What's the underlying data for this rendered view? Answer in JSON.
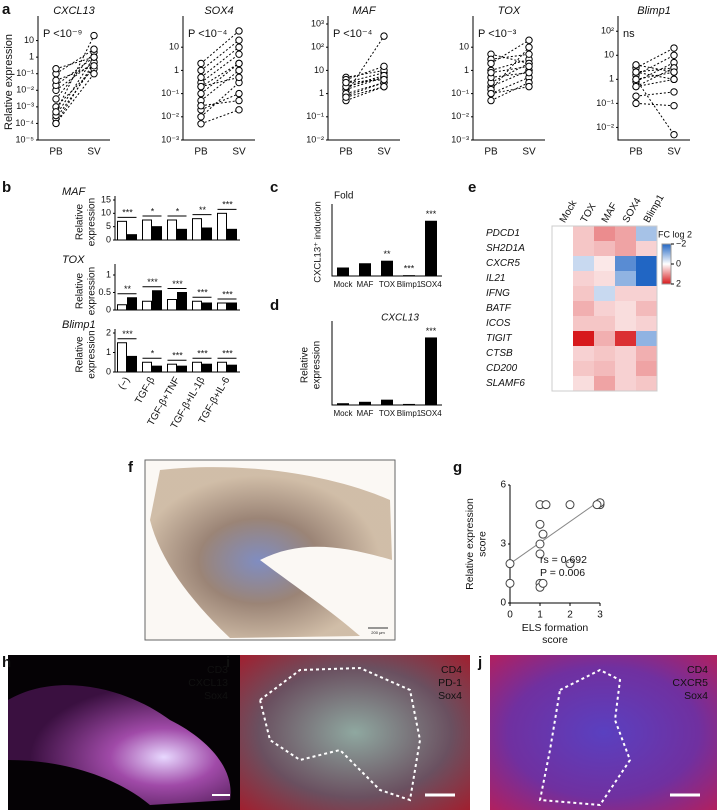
{
  "panel_labels": [
    "a",
    "b",
    "c",
    "d",
    "e",
    "f",
    "g",
    "h",
    "i",
    "j"
  ],
  "chart_data": [
    {
      "type": "paired",
      "title": "CXCL13",
      "annotation": "P <10⁻⁹",
      "ylabel": "Relative expression",
      "categories": [
        "PB",
        "SV"
      ],
      "log": true,
      "ylim": [
        1e-05,
        100
      ],
      "yticks": [
        {
          "value": 1e-05,
          "label": "10⁻⁵"
        },
        {
          "value": 0.0001,
          "label": "10⁻⁴"
        },
        {
          "value": 0.001,
          "label": "10⁻³"
        },
        {
          "value": 0.01,
          "label": "10⁻²"
        },
        {
          "value": 0.1,
          "label": "10⁻¹"
        },
        1,
        10
      ],
      "series": [
        {
          "values": [
            0.0001,
            0.5
          ]
        },
        {
          "values": [
            0.0002,
            0.3
          ]
        },
        {
          "values": [
            0.0003,
            1
          ]
        },
        {
          "values": [
            0.001,
            0.2
          ]
        },
        {
          "values": [
            0.003,
            2
          ]
        },
        {
          "values": [
            0.01,
            0.5
          ]
        },
        {
          "values": [
            0.02,
            1
          ]
        },
        {
          "values": [
            0.04,
            0.3
          ]
        },
        {
          "values": [
            0.1,
            3
          ]
        },
        {
          "values": [
            0.2,
            1
          ]
        },
        {
          "values": [
            0.0001,
            0.1
          ]
        },
        {
          "values": [
            0.0005,
            20
          ]
        }
      ]
    },
    {
      "type": "paired",
      "title": "SOX4",
      "annotation": "P <10⁻⁴",
      "categories": [
        "PB",
        "SV"
      ],
      "log": true,
      "ylim": [
        0.001,
        100
      ],
      "yticks": [
        {
          "value": 0.001,
          "label": "10⁻³"
        },
        {
          "value": 0.01,
          "label": "10⁻²"
        },
        {
          "value": 0.1,
          "label": "10⁻¹"
        },
        1,
        10
      ],
      "series": [
        {
          "values": [
            0.01,
            0.3
          ]
        },
        {
          "values": [
            0.02,
            0.1
          ]
        },
        {
          "values": [
            0.05,
            1
          ]
        },
        {
          "values": [
            0.1,
            2
          ]
        },
        {
          "values": [
            0.2,
            0.5
          ]
        },
        {
          "values": [
            0.3,
            5
          ]
        },
        {
          "values": [
            0.5,
            10
          ]
        },
        {
          "values": [
            1,
            20
          ]
        },
        {
          "values": [
            2,
            50
          ]
        },
        {
          "values": [
            0.03,
            0.05
          ]
        },
        {
          "values": [
            0.005,
            0.02
          ]
        },
        {
          "values": [
            0.2,
            2
          ]
        }
      ]
    },
    {
      "type": "paired",
      "title": "MAF",
      "annotation": "P <10⁻⁴",
      "categories": [
        "PB",
        "SV"
      ],
      "log": true,
      "ylim": [
        0.01,
        1000
      ],
      "yticks": [
        {
          "value": 0.01,
          "label": "10⁻²"
        },
        {
          "value": 0.1,
          "label": "10⁻¹"
        },
        1,
        10,
        {
          "value": 100,
          "label": "10²"
        },
        {
          "value": 1000,
          "label": "10³"
        }
      ],
      "series": [
        {
          "values": [
            0.5,
            2
          ]
        },
        {
          "values": [
            1,
            3
          ]
        },
        {
          "values": [
            2,
            5
          ]
        },
        {
          "values": [
            3,
            8
          ]
        },
        {
          "values": [
            5,
            10
          ]
        },
        {
          "values": [
            1.5,
            5
          ]
        },
        {
          "values": [
            0.8,
            3
          ]
        },
        {
          "values": [
            2,
            6
          ]
        },
        {
          "values": [
            4,
            15
          ]
        },
        {
          "values": [
            1,
            300
          ]
        },
        {
          "values": [
            3,
            4
          ]
        },
        {
          "values": [
            0.7,
            2
          ]
        }
      ]
    },
    {
      "type": "paired",
      "title": "TOX",
      "annotation": "P <10⁻³",
      "categories": [
        "PB",
        "SV"
      ],
      "log": true,
      "ylim": [
        0.001,
        100
      ],
      "yticks": [
        {
          "value": 0.001,
          "label": "10⁻³"
        },
        {
          "value": 0.01,
          "label": "10⁻²"
        },
        {
          "value": 0.1,
          "label": "10⁻¹"
        },
        1,
        10
      ],
      "series": [
        {
          "values": [
            0.1,
            0.5
          ]
        },
        {
          "values": [
            0.2,
            1
          ]
        },
        {
          "values": [
            0.3,
            2
          ]
        },
        {
          "values": [
            0.5,
            0.8
          ]
        },
        {
          "values": [
            1,
            3
          ]
        },
        {
          "values": [
            5,
            2
          ]
        },
        {
          "values": [
            3,
            5
          ]
        },
        {
          "values": [
            0.15,
            10
          ]
        },
        {
          "values": [
            0.8,
            1.5
          ]
        },
        {
          "values": [
            0.05,
            0.3
          ]
        },
        {
          "values": [
            2,
            20
          ]
        },
        {
          "values": [
            0.1,
            0.2
          ]
        }
      ]
    },
    {
      "type": "paired",
      "title": "Blimp1",
      "annotation": "ns",
      "categories": [
        "PB",
        "SV"
      ],
      "log": true,
      "ylim": [
        0.003,
        200
      ],
      "yticks": [
        {
          "value": 0.01,
          "label": "10⁻²"
        },
        {
          "value": 0.1,
          "label": "10⁻¹"
        },
        1,
        10,
        {
          "value": 100,
          "label": "10²"
        }
      ],
      "series": [
        {
          "values": [
            0.5,
            1
          ]
        },
        {
          "values": [
            1,
            2
          ]
        },
        {
          "values": [
            2,
            3
          ]
        },
        {
          "values": [
            0.8,
            5
          ]
        },
        {
          "values": [
            1.5,
            10
          ]
        },
        {
          "values": [
            3,
            20
          ]
        },
        {
          "values": [
            0.2,
            0.3
          ]
        },
        {
          "values": [
            0.1,
            0.08
          ]
        },
        {
          "values": [
            1,
            0.005
          ]
        },
        {
          "values": [
            2,
            1
          ]
        },
        {
          "values": [
            0.5,
            3
          ]
        },
        {
          "values": [
            4,
            2
          ]
        }
      ]
    },
    {
      "type": "grouped",
      "title": "MAF",
      "ylabel_lines": [
        "Relative",
        "expression"
      ],
      "ylim": [
        0,
        15
      ],
      "yticks": [
        0,
        5,
        10,
        15
      ],
      "series": [
        {
          "color": "#ffffff",
          "values": [
            7,
            7.5,
            7.5,
            8,
            10
          ]
        },
        {
          "color": "#000000",
          "values": [
            2,
            5,
            4,
            4.5,
            4
          ]
        }
      ],
      "stars": [
        "***",
        "*",
        "*",
        "**",
        "***"
      ]
    },
    {
      "type": "grouped",
      "title": "TOX",
      "ylabel_lines": [
        "Relative",
        "expression"
      ],
      "ylim": [
        0,
        1.2
      ],
      "yticks": [
        0,
        0.5,
        1
      ],
      "series": [
        {
          "color": "#ffffff",
          "values": [
            0.15,
            0.25,
            0.3,
            0.25,
            0.2
          ]
        },
        {
          "color": "#000000",
          "values": [
            0.35,
            0.55,
            0.5,
            0.2,
            0.2
          ]
        }
      ],
      "stars": [
        "**",
        "***",
        "***",
        "***",
        "***"
      ]
    },
    {
      "type": "grouped",
      "title": "Blimp1",
      "ylabel_lines": [
        "Relative",
        "expression"
      ],
      "ylim": [
        0,
        2
      ],
      "yticks": [
        0,
        1,
        2
      ],
      "categories": [
        "(−)",
        "TGF-β",
        "TGF-β+TNF",
        "TGF-β+IL-1β",
        "TGF-β+IL-6"
      ],
      "series": [
        {
          "color": "#ffffff",
          "values": [
            1.5,
            0.5,
            0.4,
            0.5,
            0.5
          ]
        },
        {
          "color": "#000000",
          "values": [
            0.8,
            0.3,
            0.3,
            0.4,
            0.35
          ]
        }
      ],
      "stars": [
        "***",
        "*",
        "***",
        "***",
        "***"
      ]
    },
    {
      "type": "bar",
      "subtitle": "Fold",
      "ylabel": "CXCL13⁺ induction",
      "categories": [
        "Mock",
        "MAF",
        "TOX",
        "Blimp1",
        "SOX4"
      ],
      "values": [
        1,
        1.5,
        1.8,
        0.1,
        6.5
      ],
      "color": "#000000",
      "ylim": [
        0,
        8
      ],
      "stars": [
        null,
        null,
        "**",
        "***",
        "***"
      ]
    },
    {
      "type": "bar",
      "title": "CXCL13",
      "ylabel_lines": [
        "Relative",
        "expression"
      ],
      "categories": [
        "Mock",
        "MAF",
        "TOX",
        "Blimp1",
        "SOX4"
      ],
      "values": [
        1,
        1.8,
        3,
        0.6,
        38
      ],
      "color": "#000000",
      "ylim": [
        0,
        45
      ],
      "stars": [
        null,
        null,
        null,
        null,
        "***"
      ]
    },
    {
      "type": "heatmap",
      "colorbar_label": "FC log 2",
      "columns": [
        "Mock",
        "TOX",
        "MAF",
        "SOX4",
        "Blimp1"
      ],
      "rows": [
        "PDCD1",
        "SH2D1A",
        "CXCR5",
        "IL21",
        "IFNG",
        "BATF",
        "ICOS",
        "TIGIT",
        "CTSB",
        "CD200",
        "SLAMF6"
      ],
      "values": [
        [
          0,
          0.5,
          1,
          0.8,
          -0.8
        ],
        [
          0,
          0.5,
          0.6,
          0.8,
          0.4
        ],
        [
          0,
          -0.5,
          0.2,
          -1.5,
          -2
        ],
        [
          0,
          0.4,
          0.3,
          -1,
          -2
        ],
        [
          0,
          0.5,
          -0.5,
          0.4,
          0.4
        ],
        [
          0,
          0.7,
          0.4,
          0.3,
          0.6
        ],
        [
          0,
          0.5,
          0.5,
          0.3,
          0.4
        ],
        [
          0,
          2,
          0.7,
          1.8,
          -1
        ],
        [
          0,
          0.4,
          0.5,
          0.4,
          0.7
        ],
        [
          0,
          0.5,
          0.6,
          0.4,
          0.8
        ],
        [
          0,
          0.3,
          0.8,
          0.4,
          0.5
        ]
      ],
      "clim": [
        -2,
        2
      ],
      "cticks": [
        {
          "value": -2,
          "label": "−2"
        },
        0,
        2
      ],
      "colors": {
        "low": "#2166c4",
        "mid": "#ffffff",
        "high": "#d7191c"
      }
    },
    {
      "type": "scatter",
      "xlabel_lines": [
        "ELS formation",
        "score"
      ],
      "ylabel_lines": [
        "Relative expression",
        "score"
      ],
      "x": [
        0,
        0,
        1,
        1,
        1.1,
        1,
        1,
        1.1,
        1,
        1,
        1.2,
        2,
        2,
        3,
        3,
        2.9
      ],
      "y": [
        1,
        2,
        1,
        0.8,
        1,
        2.5,
        3,
        3.5,
        4,
        5,
        5,
        2,
        5,
        5,
        5.1,
        5
      ],
      "xlim": [
        0,
        3
      ],
      "xticks": [
        0,
        1,
        2,
        3
      ],
      "ylim": [
        0,
        6
      ],
      "yticks": [
        0,
        3,
        6
      ],
      "fit": {
        "slope": 1.07,
        "intercept": 2
      },
      "annotations": [
        "rs = 0.692",
        "P = 0.006"
      ]
    }
  ],
  "images": {
    "f": {
      "scale": "200 μm"
    },
    "h": {
      "labels": [
        {
          "text": "CD3",
          "color": "#6d7bff"
        },
        {
          "text": "CXCL13",
          "color": "#9be37a"
        },
        {
          "text": "Sox4",
          "color": "#ff3030"
        }
      ]
    },
    "i": {
      "labels": [
        {
          "text": "CD4",
          "color": "#7f9cff"
        },
        {
          "text": "PD-1",
          "color": "#d4e04c"
        },
        {
          "text": "Sox4",
          "color": "#ff3030"
        }
      ]
    },
    "j": {
      "labels": [
        {
          "text": "CD4",
          "color": "#a68cff"
        },
        {
          "text": "CXCR5",
          "color": "#d6a8ff"
        },
        {
          "text": "Sox4",
          "color": "#ff3030"
        }
      ]
    }
  }
}
